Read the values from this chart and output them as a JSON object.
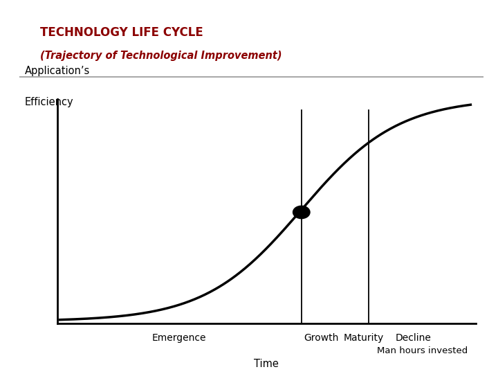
{
  "title_line1": "TECHNOLOGY LIFE CYCLE",
  "title_line2": "(Trajectory of Technological Improvement)",
  "title_color": "#8B0000",
  "ylabel_top": "Application’s",
  "ylabel_bottom": "Efficiency",
  "xlabel_bottom": "Time",
  "xlabel_top": "Man hours invested",
  "phase_labels": [
    "Emergence",
    "Growth",
    "Maturity",
    "Decline"
  ],
  "background_color": "#ffffff",
  "outer_bg": "#c8c8c8",
  "border_color": "#999999",
  "curve_color": "#000000",
  "axis_color": "#000000",
  "hline_color": "#aaaaaa",
  "fig_width": 7.2,
  "fig_height": 5.4,
  "fig_dpi": 100
}
